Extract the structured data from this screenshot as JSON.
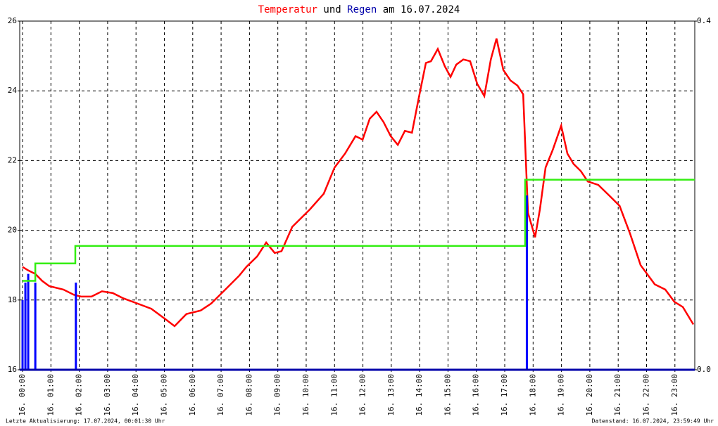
{
  "chart_data": {
    "type": "line",
    "title_joiner": "und",
    "title_date": "am 16.07.2024",
    "footer_left": "Letzte Aktualisierung: 17.07.2024, 00:01:30 Uhr",
    "footer_right": "Datenstand: 16.07.2024, 23:59:49 Uhr",
    "xlim": [
      -0.1,
      23.7
    ],
    "xticks": [
      {
        "value": 0,
        "label": "16. 00:00"
      },
      {
        "value": 1,
        "label": "16. 01:00"
      },
      {
        "value": 2,
        "label": "16. 02:00"
      },
      {
        "value": 3,
        "label": "16. 03:00"
      },
      {
        "value": 4,
        "label": "16. 04:00"
      },
      {
        "value": 5,
        "label": "16. 05:00"
      },
      {
        "value": 6,
        "label": "16. 06:00"
      },
      {
        "value": 7,
        "label": "16. 07:00"
      },
      {
        "value": 8,
        "label": "16. 08:00"
      },
      {
        "value": 9,
        "label": "16. 09:00"
      },
      {
        "value": 10,
        "label": "16. 10:00"
      },
      {
        "value": 11,
        "label": "16. 11:00"
      },
      {
        "value": 12,
        "label": "16. 12:00"
      },
      {
        "value": 13,
        "label": "16. 13:00"
      },
      {
        "value": 14,
        "label": "16. 14:00"
      },
      {
        "value": 15,
        "label": "16. 15:00"
      },
      {
        "value": 16,
        "label": "16. 16:00"
      },
      {
        "value": 17,
        "label": "16. 17:00"
      },
      {
        "value": 18,
        "label": "16. 18:00"
      },
      {
        "value": 19,
        "label": "16. 19:00"
      },
      {
        "value": 20,
        "label": "16. 20:00"
      },
      {
        "value": 21,
        "label": "16. 21:00"
      },
      {
        "value": 22,
        "label": "16. 22:00"
      },
      {
        "value": 23,
        "label": "16. 23:00"
      }
    ],
    "ylim": [
      16,
      26
    ],
    "yticks": [
      16,
      18,
      20,
      22,
      24,
      26
    ],
    "y2lim": [
      0,
      0.4
    ],
    "y2ticks": [
      {
        "value": 0,
        "label": "0.0"
      },
      {
        "value": 0.4,
        "label": "0.4"
      }
    ],
    "grid": true,
    "series": [
      {
        "name": "Temperatur",
        "color": "#ff0000",
        "kind": "line",
        "x": [
          0,
          0.2,
          0.45,
          0.69,
          0.94,
          1.44,
          1.81,
          2.06,
          2.43,
          2.8,
          3.18,
          3.55,
          4.05,
          4.54,
          5.04,
          5.36,
          5.78,
          6.28,
          6.65,
          7.15,
          7.64,
          7.89,
          8.27,
          8.59,
          8.89,
          9.13,
          9.51,
          10.13,
          10.62,
          11,
          11.37,
          11.74,
          11.99,
          12.24,
          12.48,
          12.73,
          12.98,
          13.23,
          13.48,
          13.73,
          13.97,
          14.22,
          14.4,
          14.64,
          14.89,
          15.09,
          15.29,
          15.54,
          15.78,
          16.03,
          16.28,
          16.51,
          16.71,
          16.95,
          17.2,
          17.45,
          17.65,
          17.72,
          17.82,
          18.07,
          18.24,
          18.44,
          18.69,
          18.99,
          19.21,
          19.43,
          19.68,
          19.93,
          20.3,
          20.68,
          21.05,
          21.42,
          21.79,
          22.29,
          22.66,
          22.98,
          23.28,
          23.65
        ],
        "values": [
          18.95,
          18.85,
          18.75,
          18.55,
          18.4,
          18.3,
          18.15,
          18.1,
          18.1,
          18.25,
          18.2,
          18.05,
          17.9,
          17.75,
          17.45,
          17.25,
          17.6,
          17.7,
          17.9,
          18.3,
          18.7,
          18.95,
          19.25,
          19.65,
          19.35,
          19.4,
          20.1,
          20.6,
          21.05,
          21.8,
          22.2,
          22.7,
          22.6,
          23.2,
          23.4,
          23.1,
          22.7,
          22.45,
          22.85,
          22.8,
          23.8,
          24.8,
          24.85,
          25.2,
          24.7,
          24.4,
          24.75,
          24.9,
          24.85,
          24.2,
          23.85,
          24.9,
          25.5,
          24.6,
          24.3,
          24.15,
          23.9,
          22.5,
          20.5,
          19.8,
          20.6,
          21.8,
          22.3,
          23.0,
          22.2,
          21.9,
          21.7,
          21.4,
          21.3,
          21.0,
          20.7,
          19.9,
          19.0,
          18.45,
          18.3,
          17.95,
          17.8,
          17.3
        ]
      },
      {
        "name": "Regen",
        "color": "#0000ff",
        "kind": "bar",
        "axis": "y2",
        "x": [
          0,
          0.1,
          0.2,
          0.45,
          1.88,
          17.78
        ],
        "values": [
          0.08,
          0.1,
          0.11,
          0.1,
          0.1,
          0.2
        ]
      },
      {
        "color": "#33ee11",
        "kind": "step",
        "axis": "y2",
        "x": [
          0,
          0.45,
          0.45,
          1.86,
          1.86,
          17.72,
          17.72,
          23.7
        ],
        "values": [
          0.102,
          0.102,
          0.122,
          0.122,
          0.142,
          0.142,
          0.218,
          0.218
        ]
      }
    ]
  }
}
